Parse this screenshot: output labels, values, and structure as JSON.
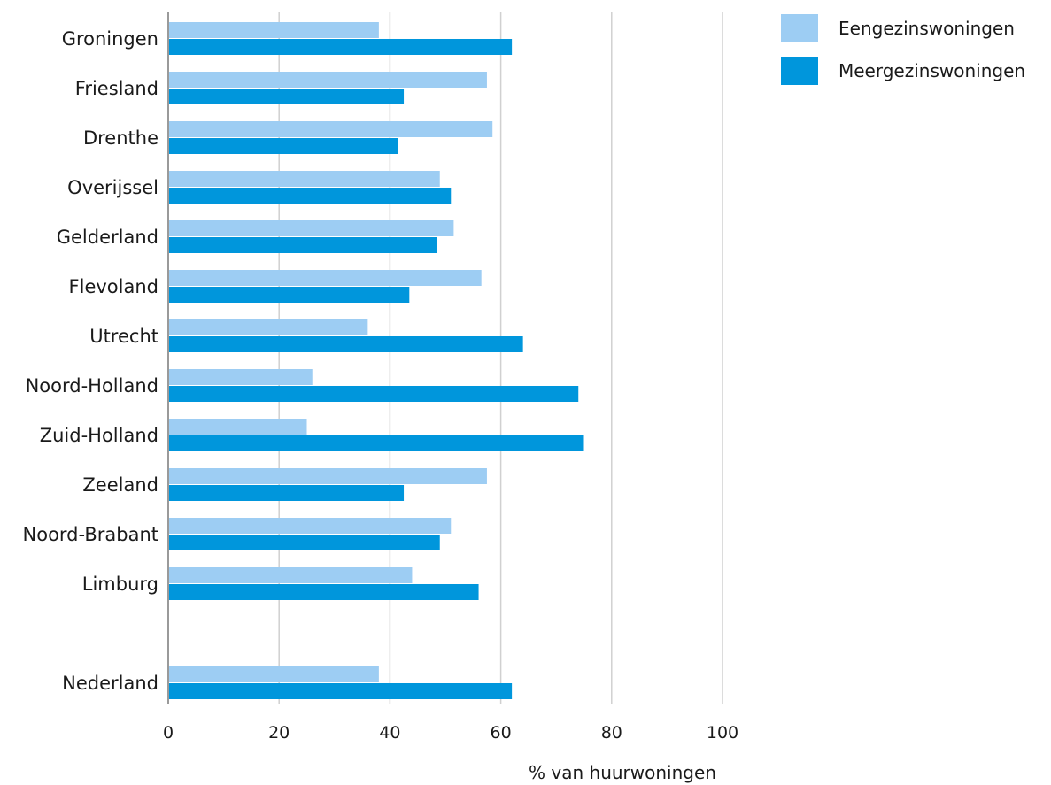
{
  "chart_data": {
    "type": "bar",
    "orientation": "horizontal",
    "title": "",
    "xlabel": "% van huurwoningen",
    "ylabel": "",
    "xlim": [
      0,
      100
    ],
    "xticks": [
      0,
      20,
      40,
      60,
      80,
      100
    ],
    "grid": "vertical",
    "legend_placement": "top-right",
    "categories": [
      "Groningen",
      "Friesland",
      "Drenthe",
      "Overijssel",
      "Gelderland",
      "Flevoland",
      "Utrecht",
      "Noord-Holland",
      "Zuid-Holland",
      "Zeeland",
      "Noord-Brabant",
      "Limburg",
      "Nederland"
    ],
    "series": [
      {
        "name": "Eengezinswoningen",
        "color": "#9dcdf3",
        "values": [
          38,
          57.5,
          58.5,
          49,
          51.5,
          56.5,
          36,
          26,
          25,
          57.5,
          51,
          44,
          38
        ]
      },
      {
        "name": "Meergezinswoningen",
        "color": "#0096dc",
        "values": [
          62,
          42.5,
          41.5,
          51,
          48.5,
          43.5,
          64,
          74,
          75,
          42.5,
          49,
          56,
          62
        ]
      }
    ]
  }
}
